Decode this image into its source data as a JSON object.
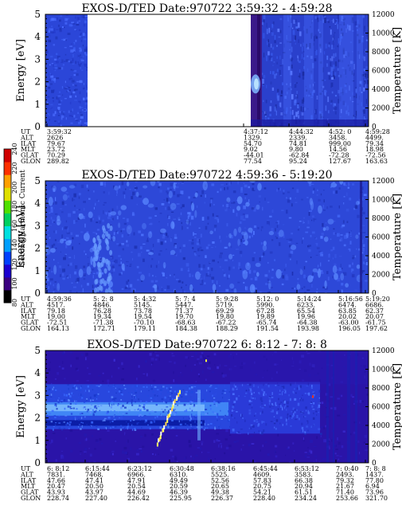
{
  "chart_data": [
    {
      "type": "heatmap",
      "title": "EXOS-D/TED   Date:970722  3:59:32 - 4:59:28",
      "ylabel": "Energy [eV]",
      "y2label": "Temperature [K]",
      "ylim": [
        0,
        5
      ],
      "y2lim": [
        0,
        12000
      ],
      "yticks": [
        "0",
        "1",
        "2",
        "3",
        "4",
        "5"
      ],
      "y2ticks": [
        "0",
        "2000",
        "4000",
        "6000",
        "8000",
        "10000",
        "12000"
      ],
      "row_labels": [
        "UT",
        "ALT",
        "ILAT",
        "MLT",
        "GLAT",
        "GLON"
      ],
      "columns": [
        {
          "values": [
            "3:59:32",
            "2626",
            "79.67",
            "23.72",
            "70.29",
            "289.82"
          ]
        },
        {
          "values": [
            "4:37:12",
            "1329.",
            "54.70",
            "9.02",
            "-44.01",
            "77.54"
          ]
        },
        {
          "values": [
            "4:44:32",
            "2339.",
            "74.81",
            "9.80",
            "-62.84",
            "95.24"
          ]
        },
        {
          "values": [
            "4:52: 0",
            "3458.",
            "999.00",
            "14.56",
            "-72.28",
            "127.67"
          ]
        },
        {
          "values": [
            "4:59:28",
            "4499.",
            "79.34",
            "18.98",
            "-72.56",
            "163.63"
          ]
        }
      ],
      "data_gap": "white region between 3:59:32 and 4:37:12"
    },
    {
      "type": "heatmap",
      "title": "EXOS-D/TED   Date:970722  4:59:36 - 5:19:20",
      "ylabel": "Energy [eV]",
      "y2label": "Temperature [K]",
      "ylim": [
        0,
        5
      ],
      "y2lim": [
        0,
        12000
      ],
      "yticks": [
        "0",
        "1",
        "2",
        "3",
        "4",
        "5"
      ],
      "y2ticks": [
        "0",
        "2000",
        "4000",
        "6000",
        "8000",
        "10000",
        "12000"
      ],
      "row_labels": [
        "UT",
        "ALT",
        "ILAT",
        "MLT",
        "GLAT",
        "GLON"
      ],
      "columns": [
        {
          "values": [
            "4:59:36",
            "4517.",
            "79.18",
            "19.00",
            "-72.51",
            "164.13"
          ]
        },
        {
          "values": [
            "5: 2: 8",
            "4846.",
            "76.28",
            "19.34",
            "-71.38",
            "172.71"
          ]
        },
        {
          "values": [
            "5: 4:32",
            "5145.",
            "73.78",
            "19.54",
            "-70.10",
            "179.11"
          ]
        },
        {
          "values": [
            "5: 7: 4",
            "5447.",
            "71.37",
            "19.70",
            "-68.63",
            "184.38"
          ]
        },
        {
          "values": [
            "5: 9:28",
            "5719.",
            "69.29",
            "19.80",
            "-67.22",
            "188.29"
          ]
        },
        {
          "values": [
            "5:12: 0",
            "5990.",
            "67.28",
            "19.89",
            "-65.74",
            "191.54"
          ]
        },
        {
          "values": [
            "5:14:24",
            "6233.",
            "65.54",
            "19.96",
            "-64.38",
            "193.98"
          ]
        },
        {
          "values": [
            "5:16:56",
            "6474.",
            "63.85",
            "20.02",
            "-63.00",
            "196.05"
          ]
        },
        {
          "values": [
            "5:19:20",
            "6686.",
            "62.37",
            "20.07",
            "-61.75",
            "197.62"
          ]
        }
      ]
    },
    {
      "type": "heatmap",
      "title": "EXOS-D/TED   Date:970722  6: 8:12 - 7: 8: 8",
      "ylabel": "Energy [eV]",
      "y2label": "Temperature [K]",
      "ylim": [
        0,
        5
      ],
      "y2lim": [
        0,
        12000
      ],
      "yticks": [
        "0",
        "1",
        "2",
        "3",
        "4",
        "5"
      ],
      "y2ticks": [
        "0",
        "2000",
        "4000",
        "6000",
        "8000",
        "10000",
        "12000"
      ],
      "row_labels": [
        "UT",
        "ALT",
        "ILAT",
        "MLT",
        "GLAT",
        "GLON"
      ],
      "columns": [
        {
          "values": [
            "6: 8:12",
            "7831.",
            "47.66",
            "20.47",
            "43.93",
            "228.74"
          ]
        },
        {
          "values": [
            "6:15:44",
            "7468.",
            "47.41",
            "20.50",
            "43.97",
            "227.40"
          ]
        },
        {
          "values": [
            "6:23:12",
            "6966.",
            "47.91",
            "20.54",
            "44.69",
            "226.42"
          ]
        },
        {
          "values": [
            "6:30:48",
            "6310.",
            "49.49",
            "20.59",
            "46.39",
            "225.95"
          ]
        },
        {
          "values": [
            "6:38:16",
            "5525.",
            "52.56",
            "20.65",
            "49.38",
            "226.37"
          ]
        },
        {
          "values": [
            "6:45:44",
            "4609.",
            "57.83",
            "20.75",
            "54.21",
            "228.40"
          ]
        },
        {
          "values": [
            "6:53:12",
            "3583.",
            "66.38",
            "20.94",
            "61.51",
            "234.24"
          ]
        },
        {
          "values": [
            "7: 0:40",
            "2493.",
            "79.32",
            "21.67",
            "71.40",
            "253.66"
          ]
        },
        {
          "values": [
            "7: 8: 8",
            "1437.",
            "77.80",
            "6.94",
            "73.96",
            "321.70"
          ]
        }
      ]
    }
  ],
  "colorbar": {
    "label": "Second Harmonic Current",
    "ticks": [
      "80",
      "100",
      "120",
      "140",
      "160",
      "180",
      "200",
      "220",
      "240"
    ],
    "range": [
      80,
      240
    ],
    "colors": [
      "#000000",
      "#3a0080",
      "#1b00d0",
      "#0040ff",
      "#00a0ff",
      "#00e0e0",
      "#00d060",
      "#50e000",
      "#e0e000",
      "#ffa000",
      "#ff3000",
      "#d00000"
    ]
  }
}
